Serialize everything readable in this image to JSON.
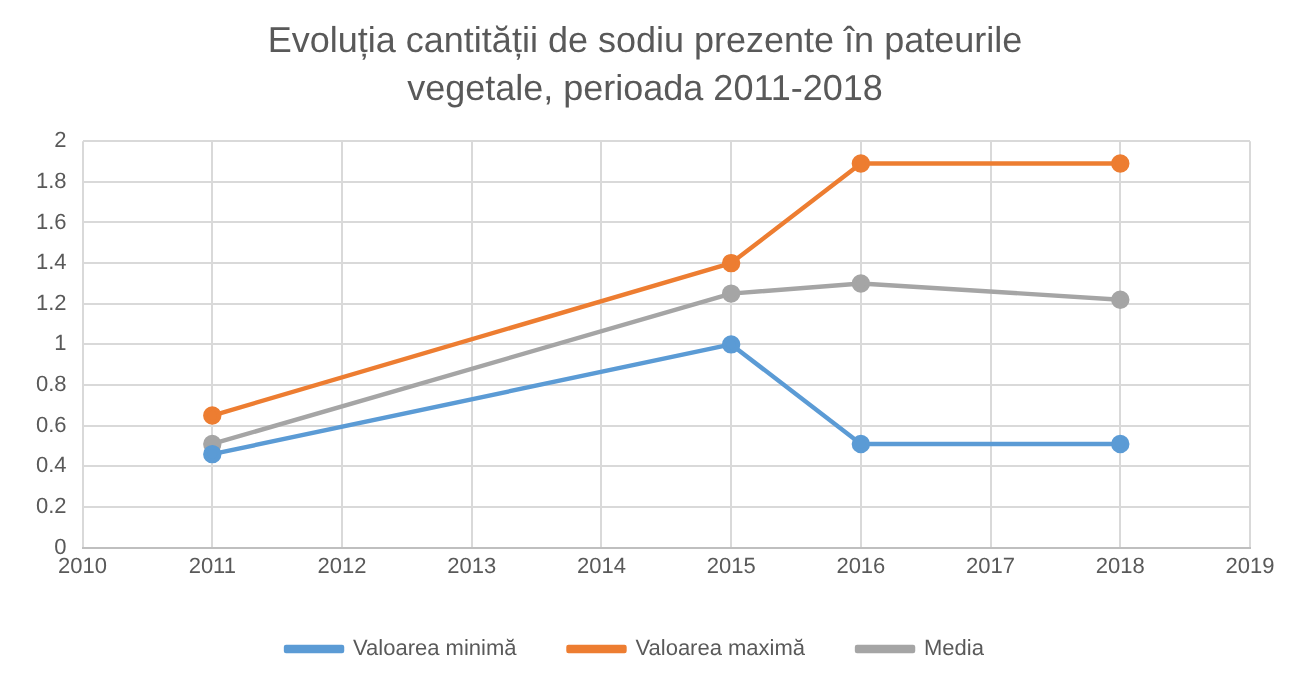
{
  "chart_data": {
    "type": "line",
    "title": "Evoluția cantității de sodiu prezente în pateurile vegetale, perioada 2011-2018",
    "x": [
      2011,
      2015,
      2016,
      2018
    ],
    "series": [
      {
        "name": "Valoarea minimă",
        "color": "#5b9bd5",
        "values": [
          0.46,
          1.0,
          0.51,
          0.51
        ]
      },
      {
        "name": "Valoarea maximă",
        "color": "#ed7d31",
        "values": [
          0.65,
          1.4,
          1.89,
          1.89
        ]
      },
      {
        "name": "Media",
        "color": "#a5a5a5",
        "values": [
          0.51,
          1.25,
          1.3,
          1.22
        ]
      }
    ],
    "xlim": [
      2010,
      2019
    ],
    "xticks": [
      2010,
      2011,
      2012,
      2013,
      2014,
      2015,
      2016,
      2017,
      2018,
      2019
    ],
    "ylim": [
      0,
      2
    ],
    "yticks": [
      0,
      0.2,
      0.4,
      0.6,
      0.8,
      1,
      1.2,
      1.4,
      1.6,
      1.8,
      2
    ],
    "grid": true,
    "legend": "bottom",
    "marker": "circle",
    "line_style": "solid"
  }
}
